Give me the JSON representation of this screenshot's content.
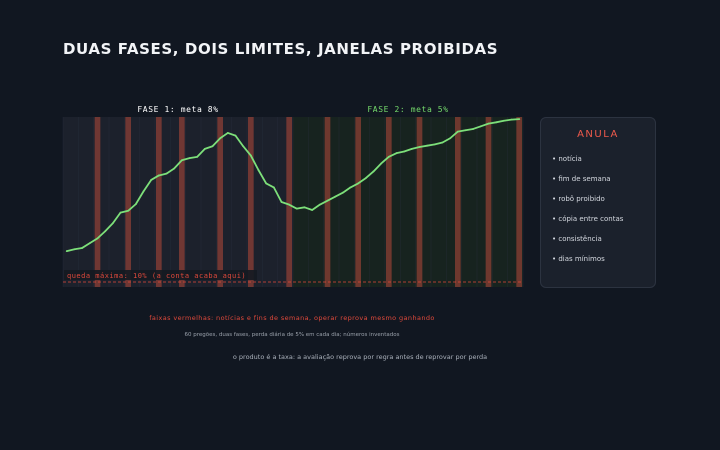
{
  "title": "DUAS FASES, DOIS LIMITES, JANELAS PROIBIDAS",
  "chart_data": {
    "type": "line",
    "x_count": 60,
    "phases": [
      {
        "label": "FASE 1: meta 8%",
        "start": 0,
        "end": 30,
        "color": "#ffffff"
      },
      {
        "label": "FASE 2: meta 5%",
        "start": 30,
        "end": 60,
        "color": "#74d96b"
      }
    ],
    "series": [
      {
        "color": "#7de07a",
        "values": [
          13.5,
          14.2,
          14.7,
          16.5,
          18.3,
          21,
          24,
          28,
          28.7,
          31.2,
          36,
          40.3,
          42,
          42.7,
          44.6,
          47.7,
          48.5,
          49,
          52,
          53,
          56,
          58,
          57,
          53,
          49.5,
          44,
          39,
          37.5,
          32,
          31,
          29.5,
          30,
          29,
          31,
          32.5,
          34,
          35.5,
          37.5,
          39,
          41,
          43.5,
          46.5,
          49,
          50.4,
          51,
          52,
          52.7,
          53.2,
          53.7,
          54.4,
          56,
          58.5,
          59,
          59.5,
          60.5,
          61.5,
          62,
          62.6,
          63,
          63.2
        ]
      }
    ],
    "forbidden_windows": [
      4,
      8,
      12,
      15,
      20,
      24,
      29,
      34,
      38,
      42,
      46,
      51,
      55,
      59
    ],
    "drawdown_label": "queda máxima: 10% (a conta acaba aqui)",
    "colors": {
      "phase1_bg": "#1c212c",
      "phase2_bg": "#17231f",
      "forbidden": "#b64a3a",
      "drawdown": "#e0493b",
      "line": "#7de07a"
    }
  },
  "anula": {
    "title": "ANULA",
    "items": [
      "• notícia",
      "• fim de semana",
      "• robô proibido",
      "• cópia entre contas",
      "• consistência",
      "• dias mínimos"
    ]
  },
  "notes": {
    "red": "faixas vermelhas: notícias e fins de semana, operar reprova mesmo ganhando",
    "small": "60 pregões, duas fases, perda diária de 5% em cada dia; números inventados",
    "bottom": "o produto é a taxa: a avaliação reprova por regra antes de reprovar por perda"
  }
}
